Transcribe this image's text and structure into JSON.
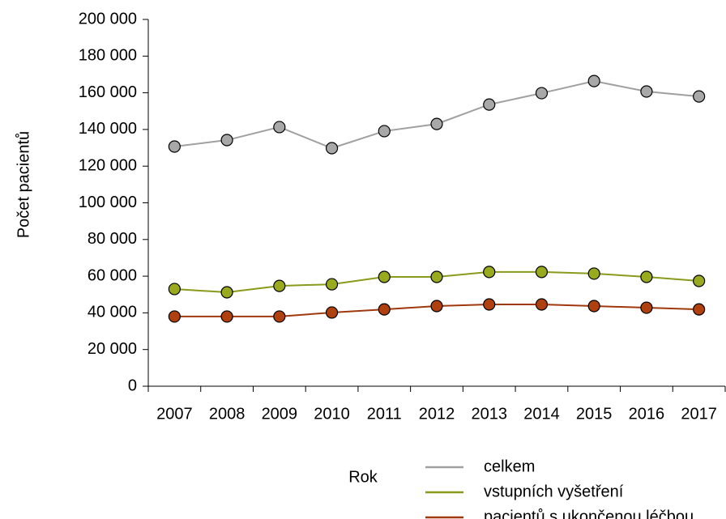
{
  "chart_data": {
    "type": "line",
    "x_label": "Rok",
    "y_label": "Počet pacientů",
    "categories": [
      "2007",
      "2008",
      "2009",
      "2010",
      "2011",
      "2012",
      "2013",
      "2014",
      "2015",
      "2016",
      "2017"
    ],
    "series": [
      {
        "name": "celkem",
        "color": "#a0a0a0",
        "marker_color": "#a8a8a8",
        "values": [
          130700,
          134200,
          141300,
          129800,
          139100,
          143000,
          153600,
          159800,
          166400,
          160700,
          158000
        ]
      },
      {
        "name": "vstupních vyšetření",
        "color": "#8a9a1a",
        "marker_color": "#9aaa1e",
        "values": [
          53000,
          51200,
          54700,
          55600,
          59600,
          59600,
          62300,
          62300,
          61400,
          59600,
          57400
        ]
      },
      {
        "name": "pacientů s ukončenou léčbou",
        "color": "#a0380e",
        "marker_color": "#b0400e",
        "values": [
          38000,
          38000,
          38000,
          40200,
          41900,
          43700,
          44600,
          44600,
          43700,
          42800,
          41900
        ]
      }
    ],
    "ylim": [
      0,
      200000
    ],
    "yticks": [
      0,
      {
        "value": 20000,
        "label": "20 000"
      },
      {
        "value": 40000,
        "label": "40 000"
      },
      {
        "value": 60000,
        "label": "60 000"
      },
      {
        "value": 80000,
        "label": "80 000"
      },
      {
        "value": 100000,
        "label": "100 000"
      },
      {
        "value": 120000,
        "label": "120 000"
      },
      {
        "value": 140000,
        "label": "140 000"
      },
      {
        "value": 160000,
        "label": "160 000"
      },
      {
        "value": 180000,
        "label": "180 000"
      },
      {
        "value": 200000,
        "label": "200 000"
      }
    ],
    "grid": false,
    "legend": "bottom"
  }
}
